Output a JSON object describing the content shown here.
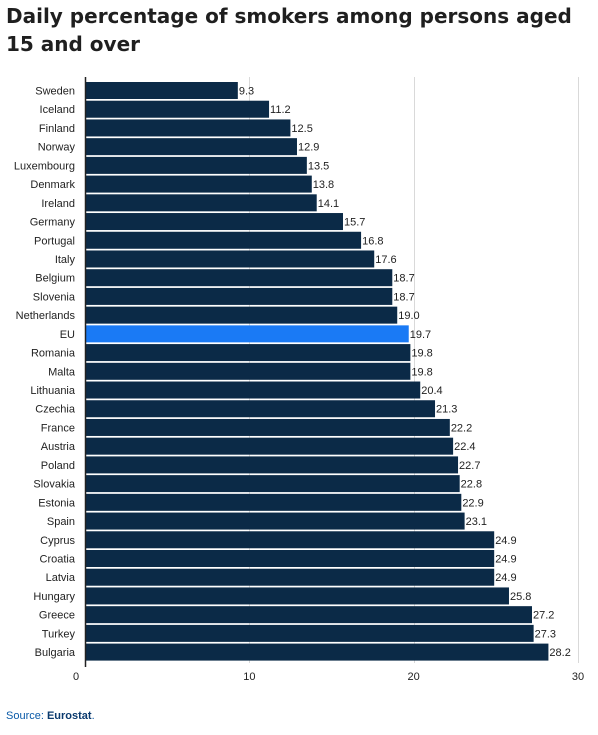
{
  "chart_data": {
    "type": "bar",
    "orientation": "horizontal",
    "title": "Daily percentage of smokers among persons aged 15 and over",
    "categories": [
      "Sweden",
      "Iceland",
      "Finland",
      "Norway",
      "Luxembourg",
      "Denmark",
      "Ireland",
      "Germany",
      "Portugal",
      "Italy",
      "Belgium",
      "Slovenia",
      "Netherlands",
      "EU",
      "Romania",
      "Malta",
      "Lithuania",
      "Czechia",
      "France",
      "Austria",
      "Poland",
      "Slovakia",
      "Estonia",
      "Spain",
      "Cyprus",
      "Croatia",
      "Latvia",
      "Hungary",
      "Greece",
      "Turkey",
      "Bulgaria"
    ],
    "values": [
      9.3,
      11.2,
      12.5,
      12.9,
      13.5,
      13.8,
      14.1,
      15.7,
      16.8,
      17.6,
      18.7,
      18.7,
      19.0,
      19.7,
      19.8,
      19.8,
      20.4,
      21.3,
      22.2,
      22.4,
      22.7,
      22.8,
      22.9,
      23.1,
      24.9,
      24.9,
      24.9,
      25.8,
      27.2,
      27.3,
      28.2
    ],
    "value_labels": [
      "9.3",
      "11.2",
      "12.5",
      "12.9",
      "13.5",
      "13.8",
      "14.1",
      "15.7",
      "16.8",
      "17.6",
      "18.7",
      "18.7",
      "19.0",
      "19.7",
      "19.8",
      "19.8",
      "20.4",
      "21.3",
      "22.2",
      "22.4",
      "22.7",
      "22.8",
      "22.9",
      "23.1",
      "24.9",
      "24.9",
      "24.9",
      "25.8",
      "27.2",
      "27.3",
      "28.2"
    ],
    "highlight_category": "EU",
    "xlim": [
      0,
      30
    ],
    "xticks": [
      "0",
      "10",
      "20",
      "30"
    ],
    "xtick_values": [
      0,
      10,
      20,
      30
    ],
    "grid": true,
    "colors": {
      "bar": "#0b2a47",
      "highlight": "#1a7af5",
      "grid": "#d9d9d9",
      "axis": "#222222",
      "label": "#222222"
    }
  },
  "source": {
    "prefix": "Source: ",
    "link_text": "Eurostat",
    "suffix": "."
  }
}
